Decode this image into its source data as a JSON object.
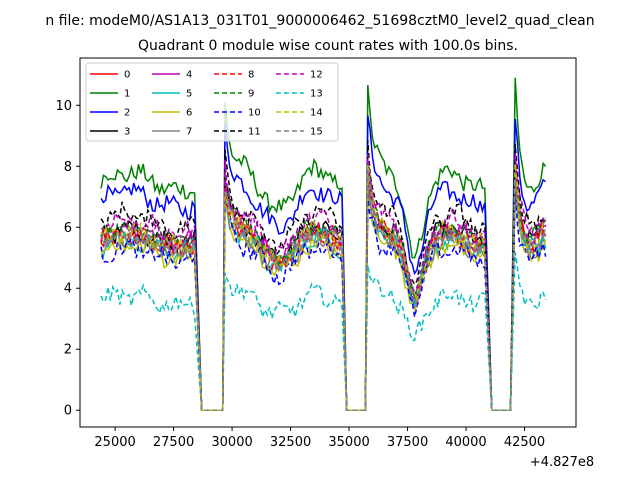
{
  "chart_data": {
    "type": "line",
    "suptitle": "n file: modeM0/AS1A13_031T01_9000006462_51698cztM0_level2_quad_clean",
    "title": "Quadrant 0 module wise count rates with 100.0s bins.",
    "xlabel": "",
    "ylabel": "",
    "x_offset_label": "+4.827e8",
    "xlim": [
      23500,
      44700
    ],
    "ylim": [
      -0.55,
      11.55
    ],
    "x_ticks": [
      25000,
      27500,
      30000,
      32500,
      35000,
      37500,
      40000,
      42500
    ],
    "x_tick_labels": [
      "25000",
      "27500",
      "30000",
      "32500",
      "35000",
      "37500",
      "40000",
      "42500"
    ],
    "y_ticks": [
      0,
      2,
      4,
      6,
      8,
      10
    ],
    "y_tick_labels": [
      "0",
      "2",
      "4",
      "6",
      "8",
      "10"
    ],
    "grid": false,
    "legend": {
      "placement": "top-left",
      "columns": 4
    },
    "segments": [
      [
        24400,
        28400
      ],
      [
        29700,
        34700
      ],
      [
        35800,
        40800
      ],
      [
        42100,
        43400
      ]
    ],
    "gaps": [
      [
        28700,
        29600
      ],
      [
        34900,
        35700
      ],
      [
        41100,
        41900
      ]
    ],
    "series": [
      {
        "name": "0",
        "color": "#ff0000",
        "dash": "solid",
        "base": 5.5
      },
      {
        "name": "1",
        "color": "#008000",
        "dash": "solid",
        "base": 7.5
      },
      {
        "name": "2",
        "color": "#0000ff",
        "dash": "solid",
        "base": 6.9
      },
      {
        "name": "3",
        "color": "#000000",
        "dash": "solid",
        "base": 5.7
      },
      {
        "name": "4",
        "color": "#bf00bf",
        "dash": "solid",
        "base": 5.7
      },
      {
        "name": "5",
        "color": "#00bfbf",
        "dash": "solid",
        "base": 5.4
      },
      {
        "name": "6",
        "color": "#bfbf00",
        "dash": "solid",
        "base": 5.2
      },
      {
        "name": "7",
        "color": "#808080",
        "dash": "solid",
        "base": 5.4
      },
      {
        "name": "8",
        "color": "#ff0000",
        "dash": "dashed",
        "base": 5.6
      },
      {
        "name": "9",
        "color": "#008000",
        "dash": "dashed",
        "base": 5.8
      },
      {
        "name": "10",
        "color": "#0000ff",
        "dash": "dashed",
        "base": 5.1
      },
      {
        "name": "11",
        "color": "#000000",
        "dash": "dashed",
        "base": 6.2
      },
      {
        "name": "12",
        "color": "#bf00bf",
        "dash": "dashed",
        "base": 6.0
      },
      {
        "name": "13",
        "color": "#00bfbf",
        "dash": "dashed",
        "base": 3.6
      },
      {
        "name": "14",
        "color": "#bfbf00",
        "dash": "dashed",
        "base": 5.6
      },
      {
        "name": "15",
        "color": "#808080",
        "dash": "dashed",
        "base": 5.5
      }
    ]
  }
}
